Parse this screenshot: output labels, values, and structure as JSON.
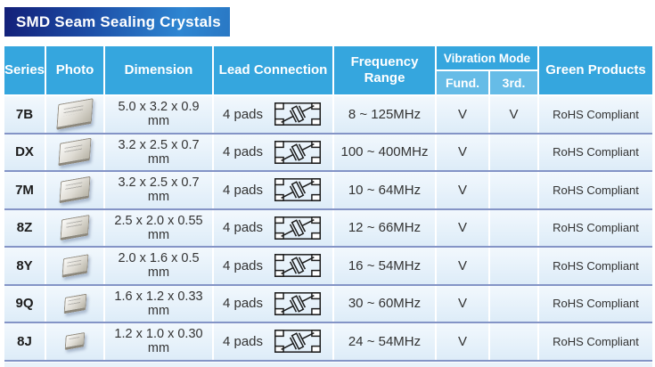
{
  "page_title": "SMD Seam Sealing Crystals",
  "colors": {
    "title_gradient_start": "#131f78",
    "title_gradient_end": "#2e86d2",
    "header_blue": "#35a6de",
    "subheader_blue": "#66bce7",
    "row_separator": "#8494c6",
    "row_bg_top": "#f2f8fd",
    "row_bg_bottom": "#ddecf8",
    "body_text": "#333333"
  },
  "icons": {
    "photo": "smd-crystal-package-photo",
    "lead_connection": "quartz-crystal-schematic-icon"
  },
  "table": {
    "headers": {
      "series": "Series",
      "photo": "Photo",
      "dimension": "Dimension",
      "lead_connection": "Lead Connection",
      "frequency_range": "Frequency Range",
      "vibration_mode": "Vibration Mode",
      "fund": "Fund.",
      "third": "3rd.",
      "green_products": "Green Products"
    },
    "rows": [
      {
        "series": "7B",
        "dimension": "5.0 x 3.2 x 0.9",
        "dimension_unit": "mm",
        "lead": "4 pads",
        "frequency": "8 ~ 125MHz",
        "fund": "V",
        "third": "V",
        "green": "RoHS Compliant"
      },
      {
        "series": "DX",
        "dimension": "3.2 x 2.5 x 0.7",
        "dimension_unit": "mm",
        "lead": "4 pads",
        "frequency": "100 ~ 400MHz",
        "fund": "V",
        "third": "",
        "green": "RoHS Compliant"
      },
      {
        "series": "7M",
        "dimension": "3.2 x 2.5 x 0.7",
        "dimension_unit": "mm",
        "lead": "4 pads",
        "frequency": "10 ~ 64MHz",
        "fund": "V",
        "third": "",
        "green": "RoHS Compliant"
      },
      {
        "series": "8Z",
        "dimension": "2.5 x 2.0 x 0.55",
        "dimension_unit": "mm",
        "lead": "4 pads",
        "frequency": "12 ~ 66MHz",
        "fund": "V",
        "third": "",
        "green": "RoHS Compliant"
      },
      {
        "series": "8Y",
        "dimension": "2.0 x 1.6 x 0.5",
        "dimension_unit": "mm",
        "lead": "4 pads",
        "frequency": "16 ~ 54MHz",
        "fund": "V",
        "third": "",
        "green": "RoHS Compliant"
      },
      {
        "series": "9Q",
        "dimension": "1.6 x 1.2 x 0.33",
        "dimension_unit": "mm",
        "lead": "4 pads",
        "frequency": "30 ~ 60MHz",
        "fund": "V",
        "third": "",
        "green": "RoHS Compliant"
      },
      {
        "series": "8J",
        "dimension": "1.2 x 1.0 x 0.30",
        "dimension_unit": "mm",
        "lead": "4 pads",
        "frequency": "24 ~ 54MHz",
        "fund": "V",
        "third": "",
        "green": "RoHS Compliant"
      }
    ]
  }
}
